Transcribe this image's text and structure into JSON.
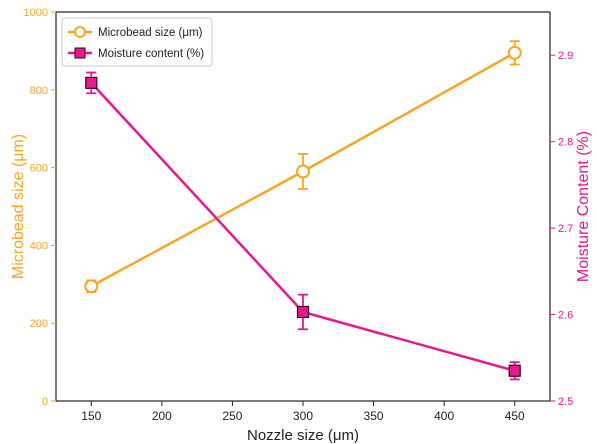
{
  "colors": {
    "left": "#f5a623",
    "right": "#e6198e",
    "axis": "#222222",
    "text": "#222222"
  },
  "chart_data": {
    "type": "line",
    "xlabel": "Nozzle size (μm)",
    "ylabel_left": "Microbead size (μm)",
    "ylabel_right": "Moisture Content (%)",
    "xlim": [
      125,
      475
    ],
    "ylim_left": [
      0,
      1000
    ],
    "ylim_right": [
      2.5,
      2.95
    ],
    "x_ticks": [
      150,
      200,
      250,
      300,
      350,
      400,
      450
    ],
    "y_left_ticks": [
      0,
      200,
      400,
      600,
      800,
      1000
    ],
    "y_right_ticks": [
      2.5,
      2.6,
      2.7,
      2.8,
      2.9
    ],
    "grid": false,
    "legend_position": "top-left",
    "series": [
      {
        "name": "Microbead size (μm)",
        "axis": "left",
        "marker": "circle-open",
        "color": "#f5a623",
        "x": [
          150,
          300,
          450
        ],
        "y": [
          295,
          590,
          895
        ],
        "err": [
          15,
          45,
          30
        ]
      },
      {
        "name": "Moisture content (%)",
        "axis": "right",
        "marker": "square-filled",
        "color": "#e6198e",
        "x": [
          150,
          300,
          450
        ],
        "y": [
          2.868,
          2.603,
          2.535
        ],
        "err": [
          0.012,
          0.02,
          0.01
        ]
      }
    ]
  }
}
